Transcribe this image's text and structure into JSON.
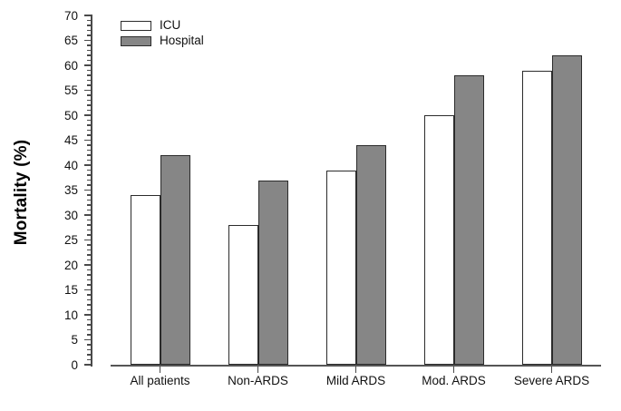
{
  "chart_data": {
    "type": "bar",
    "title": "",
    "ylabel": "Mortality (%)",
    "xlabel": "",
    "categories": [
      "All patients",
      "Non-ARDS",
      "Mild ARDS",
      "Mod. ARDS",
      "Severe ARDS"
    ],
    "series": [
      {
        "name": "ICU",
        "fill": "#ffffff",
        "values": [
          34,
          28,
          39,
          50,
          59
        ]
      },
      {
        "name": "Hospital",
        "fill": "#868686",
        "values": [
          42,
          37,
          44,
          58,
          62
        ]
      }
    ],
    "ylim": [
      0,
      70
    ],
    "y_major_tick": 5,
    "y_minor_tick": 1,
    "grid": false,
    "legend_position": "top-left-inside",
    "colors": {
      "bar_border": "#2b2b2b",
      "axis": "#4a4a4a",
      "text": "#111111"
    }
  }
}
